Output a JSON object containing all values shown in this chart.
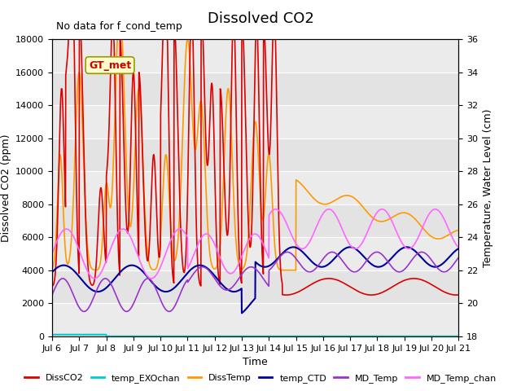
{
  "title": "Dissolved CO2",
  "subtitle": "No data for f_cond_temp",
  "xlabel": "Time",
  "ylabel_left": "Dissolved CO2 (ppm)",
  "ylabel_right": "Temperature, Water Level (cm)",
  "ylim_left": [
    0,
    18000
  ],
  "ylim_right": [
    18,
    36
  ],
  "gt_met_label": "GT_met",
  "gt_met_color": "#cc0000",
  "gt_met_bg": "#ffffcc",
  "series_colors": {
    "DissCO2": "#dd0000",
    "temp_EXOchan": "#00cccc",
    "DissTemp": "#ff9900",
    "temp_CTD": "#000099",
    "MD_Temp": "#9933cc",
    "MD_Temp_chan": "#ff66ff"
  },
  "background_color": "#ffffff",
  "plot_bg_color": "#f0f0f0"
}
